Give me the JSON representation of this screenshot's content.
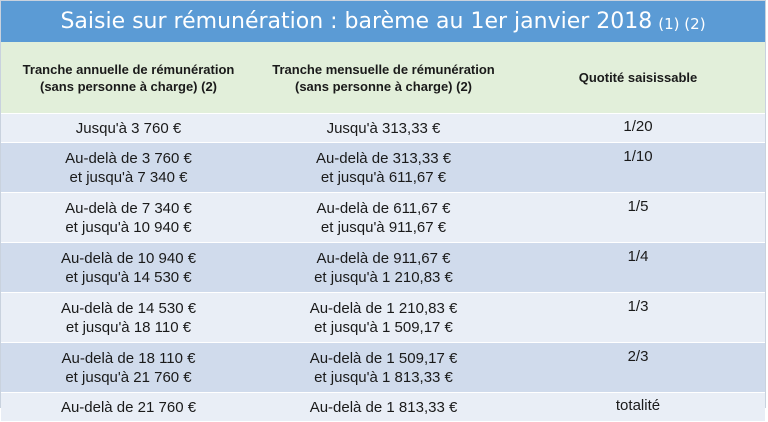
{
  "title": {
    "main": "Saisie sur rémunération : barème au 1er janvier 2018",
    "notes": "(1) (2)"
  },
  "colors": {
    "title_bg": "#5b9bd5",
    "header_bg": "#e2efda",
    "row_light": "#e9eef6",
    "row_dark": "#d0dbec"
  },
  "table": {
    "headers": [
      "Tranche annuelle de rémunération (sans personne à charge) (2)",
      "Tranche mensuelle de rémunération (sans personne à charge) (2)",
      "Quotité saisissable"
    ],
    "rows": [
      {
        "annual": [
          "Jusqu'à 3 760 €"
        ],
        "monthly": [
          "Jusqu'à 313,33 €"
        ],
        "rate": "1/20"
      },
      {
        "annual": [
          "Au-delà de 3 760 €",
          "et jusqu'à 7 340 €"
        ],
        "monthly": [
          "Au-delà de 313,33 €",
          "et jusqu'à 611,67 €"
        ],
        "rate": "1/10"
      },
      {
        "annual": [
          "Au-delà de 7 340 €",
          "et jusqu'à 10 940 €"
        ],
        "monthly": [
          "Au-delà de 611,67 €",
          "et jusqu'à 911,67 €"
        ],
        "rate": "1/5"
      },
      {
        "annual": [
          "Au-delà de 10 940 €",
          "et jusqu'à 14 530 €"
        ],
        "monthly": [
          "Au-delà de 911,67 €",
          "et jusqu'à 1 210,83 €"
        ],
        "rate": "1/4"
      },
      {
        "annual": [
          "Au-delà de 14 530 €",
          "et jusqu'à 18 110 €"
        ],
        "monthly": [
          "Au-delà de 1 210,83 €",
          "et jusqu'à 1 509,17 €"
        ],
        "rate": "1/3"
      },
      {
        "annual": [
          "Au-delà de 18 110 €",
          "et jusqu'à 21 760 €"
        ],
        "monthly": [
          "Au-delà de 1 509,17 €",
          "et jusqu'à 1 813,33 €"
        ],
        "rate": "2/3"
      },
      {
        "annual": [
          "Au-delà de 21 760 €"
        ],
        "monthly": [
          "Au-delà de 1 813,33 €"
        ],
        "rate": "totalité"
      }
    ]
  }
}
